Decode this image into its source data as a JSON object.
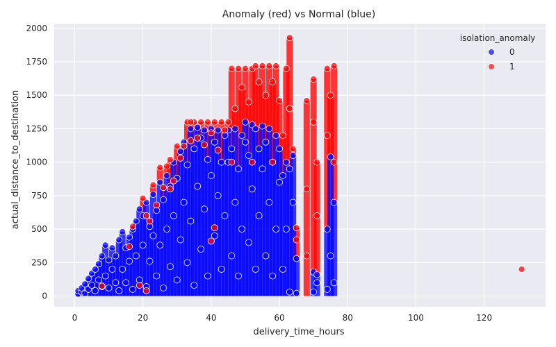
{
  "chart_data": {
    "type": "scatter",
    "title": "Anomaly (red) vs Normal (blue)",
    "xlabel": "delivery_time_hours",
    "ylabel": "actual_distance_to_destination",
    "xlim": [
      -6,
      138
    ],
    "ylim": [
      -80,
      2030
    ],
    "xticks": [
      0,
      20,
      40,
      60,
      80,
      100,
      120
    ],
    "yticks": [
      0,
      250,
      500,
      750,
      1000,
      1250,
      1500,
      1750,
      2000
    ],
    "grid": true,
    "background": "#eaeaf2",
    "legend": {
      "title": "isolation_anomaly",
      "placement": "top-right",
      "entries": [
        {
          "label": "0",
          "color": "#0000ff"
        },
        {
          "label": "1",
          "color": "#ff0000"
        }
      ]
    },
    "series": [
      {
        "name": "0",
        "color": "#0000ff",
        "points": [
          [
            1,
            15
          ],
          [
            1,
            40
          ],
          [
            2,
            30
          ],
          [
            2,
            60
          ],
          [
            3,
            20
          ],
          [
            3,
            90
          ],
          [
            4,
            50
          ],
          [
            4,
            130
          ],
          [
            5,
            80
          ],
          [
            5,
            170
          ],
          [
            6,
            40
          ],
          [
            6,
            200
          ],
          [
            7,
            120
          ],
          [
            7,
            240
          ],
          [
            8,
            70
          ],
          [
            8,
            300
          ],
          [
            9,
            150
          ],
          [
            9,
            380
          ],
          [
            10,
            60
          ],
          [
            10,
            270
          ],
          [
            11,
            200
          ],
          [
            11,
            360
          ],
          [
            12,
            100
          ],
          [
            12,
            300
          ],
          [
            13,
            40
          ],
          [
            13,
            420
          ],
          [
            14,
            200
          ],
          [
            14,
            480
          ],
          [
            15,
            100
          ],
          [
            15,
            360
          ],
          [
            16,
            260
          ],
          [
            16,
            440
          ],
          [
            17,
            50
          ],
          [
            17,
            500
          ],
          [
            18,
            300
          ],
          [
            18,
            560
          ],
          [
            19,
            120
          ],
          [
            19,
            650
          ],
          [
            20,
            380
          ],
          [
            20,
            600
          ],
          [
            21,
            70
          ],
          [
            21,
            700
          ],
          [
            22,
            260
          ],
          [
            22,
            520
          ],
          [
            23,
            450
          ],
          [
            23,
            760
          ],
          [
            24,
            150
          ],
          [
            24,
            640
          ],
          [
            25,
            380
          ],
          [
            25,
            850
          ],
          [
            26,
            60
          ],
          [
            26,
            720
          ],
          [
            27,
            500
          ],
          [
            27,
            900
          ],
          [
            28,
            220
          ],
          [
            28,
            820
          ],
          [
            29,
            600
          ],
          [
            29,
            1000
          ],
          [
            30,
            120
          ],
          [
            30,
            880
          ],
          [
            31,
            420
          ],
          [
            31,
            1080
          ],
          [
            32,
            700
          ],
          [
            32,
            1150
          ],
          [
            33,
            250
          ],
          [
            33,
            980
          ],
          [
            34,
            560
          ],
          [
            34,
            1250
          ],
          [
            35,
            80
          ],
          [
            35,
            1100
          ],
          [
            36,
            820
          ],
          [
            36,
            1260
          ],
          [
            37,
            350
          ],
          [
            37,
            1180
          ],
          [
            38,
            650
          ],
          [
            38,
            1240
          ],
          [
            39,
            150
          ],
          [
            39,
            1020
          ],
          [
            40,
            900
          ],
          [
            40,
            1250
          ],
          [
            41,
            450
          ],
          [
            41,
            1150
          ],
          [
            42,
            750
          ],
          [
            42,
            1240
          ],
          [
            43,
            200
          ],
          [
            43,
            1000
          ],
          [
            44,
            600
          ],
          [
            44,
            1200
          ],
          [
            45,
            1000
          ],
          [
            45,
            1240
          ],
          [
            46,
            300
          ],
          [
            46,
            1100
          ],
          [
            47,
            700
          ],
          [
            47,
            1250
          ],
          [
            48,
            150
          ],
          [
            48,
            950
          ],
          [
            49,
            500
          ],
          [
            49,
            1200
          ],
          [
            50,
            1150
          ],
          [
            50,
            1300
          ],
          [
            51,
            400
          ],
          [
            51,
            1050
          ],
          [
            52,
            800
          ],
          [
            52,
            1280
          ],
          [
            53,
            200
          ],
          [
            53,
            1250
          ],
          [
            54,
            600
          ],
          [
            54,
            1100
          ],
          [
            55,
            950
          ],
          [
            55,
            1270
          ],
          [
            56,
            300
          ],
          [
            56,
            1150
          ],
          [
            57,
            700
          ],
          [
            57,
            1250
          ],
          [
            58,
            150
          ],
          [
            58,
            1000
          ],
          [
            59,
            500
          ],
          [
            59,
            1200
          ],
          [
            60,
            850
          ],
          [
            60,
            1100
          ],
          [
            61,
            200
          ],
          [
            61,
            900
          ],
          [
            62,
            500
          ],
          [
            62,
            1000
          ],
          [
            63,
            30
          ],
          [
            63,
            950
          ],
          [
            64,
            700
          ],
          [
            64,
            1050
          ],
          [
            65,
            20
          ],
          [
            65,
            280
          ],
          [
            70,
            30
          ],
          [
            70,
            180
          ],
          [
            71,
            100
          ],
          [
            71,
            160
          ],
          [
            74,
            50
          ],
          [
            74,
            500
          ],
          [
            75,
            300
          ],
          [
            75,
            1040
          ],
          [
            76,
            100
          ],
          [
            76,
            700
          ]
        ]
      },
      {
        "name": "1",
        "color": "#ff0000",
        "points": [
          [
            8,
            75
          ],
          [
            16,
            370
          ],
          [
            17,
            520
          ],
          [
            19,
            80
          ],
          [
            20,
            730
          ],
          [
            21,
            600
          ],
          [
            22,
            560
          ],
          [
            23,
            830
          ],
          [
            24,
            680
          ],
          [
            25,
            960
          ],
          [
            26,
            810
          ],
          [
            27,
            970
          ],
          [
            28,
            1020
          ],
          [
            29,
            860
          ],
          [
            30,
            1120
          ],
          [
            31,
            1030
          ],
          [
            32,
            1120
          ],
          [
            33,
            1300
          ],
          [
            34,
            1160
          ],
          [
            35,
            1300
          ],
          [
            36,
            1180
          ],
          [
            37,
            1300
          ],
          [
            38,
            1130
          ],
          [
            39,
            1300
          ],
          [
            40,
            1220
          ],
          [
            41,
            1300
          ],
          [
            42,
            1090
          ],
          [
            43,
            1300
          ],
          [
            44,
            1240
          ],
          [
            45,
            1300
          ],
          [
            46,
            1700
          ],
          [
            47,
            1400
          ],
          [
            48,
            1700
          ],
          [
            49,
            1560
          ],
          [
            50,
            1700
          ],
          [
            51,
            1450
          ],
          [
            52,
            1700
          ],
          [
            53,
            1720
          ],
          [
            54,
            1600
          ],
          [
            55,
            1720
          ],
          [
            56,
            1500
          ],
          [
            57,
            1720
          ],
          [
            58,
            1600
          ],
          [
            59,
            1720
          ],
          [
            60,
            1460
          ],
          [
            61,
            1200
          ],
          [
            62,
            1700
          ],
          [
            63,
            1930
          ],
          [
            63,
            1400
          ],
          [
            64,
            1100
          ],
          [
            65,
            510
          ],
          [
            65,
            420
          ],
          [
            68,
            1460
          ],
          [
            68,
            800
          ],
          [
            68,
            300
          ],
          [
            70,
            1620
          ],
          [
            70,
            1300
          ],
          [
            71,
            1000
          ],
          [
            71,
            600
          ],
          [
            74,
            1700
          ],
          [
            74,
            1200
          ],
          [
            75,
            1500
          ],
          [
            76,
            1720
          ],
          [
            76,
            1000
          ],
          [
            41,
            510
          ],
          [
            40,
            410
          ],
          [
            34,
            1300
          ],
          [
            21,
            40
          ],
          [
            28,
            800
          ],
          [
            46,
            1000
          ],
          [
            52,
            1000
          ],
          [
            58,
            1000
          ],
          [
            131,
            200
          ]
        ]
      }
    ]
  }
}
